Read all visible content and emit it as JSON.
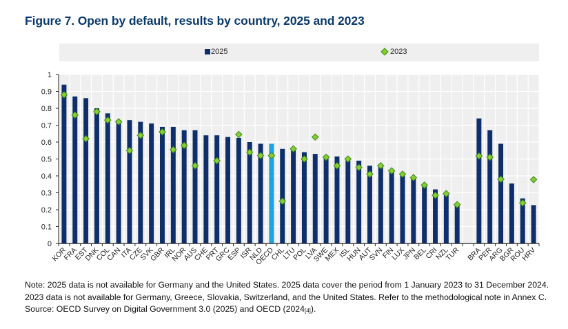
{
  "figure": {
    "title": "Figure 7. Open by default, results by country, 2025 and 2023"
  },
  "legend": {
    "items": [
      {
        "label": "2025",
        "marker": "square",
        "color": "#0e2f6b"
      },
      {
        "label": "2023",
        "marker": "diamond",
        "color": "#88cc33"
      }
    ]
  },
  "colors": {
    "bar": "#0e2f6b",
    "bar_highlight": "#1ba3e3",
    "marker_fill": "#88cc33",
    "marker_stroke": "#3a8a1a",
    "plot_bg": "#efefef",
    "grid": "#ffffff"
  },
  "notes": {
    "line1": "Note: 2025 data is not available for Germany and the United States. 2025 data cover the period from 1 January 2023 to 31 December 2024.",
    "line2": "2023 data is not available for Germany, Greece, Slovakia, Switzerland, and the United States. Refer to the methodological note in Annex C.",
    "line3_prefix": "Source: OECD Survey on Digital Government 3.0 (2025) and OECD (2024",
    "line3_ref": "[4]",
    "line3_suffix": ")."
  },
  "chart_data": {
    "type": "bar",
    "title": "Figure 7. Open by default, results by country, 2025 and 2023",
    "xlabel": "",
    "ylabel": "",
    "ylim": [
      0,
      1
    ],
    "yticks": [
      0,
      0.1,
      0.2,
      0.3,
      0.4,
      0.5,
      0.6,
      0.7,
      0.8,
      0.9,
      1
    ],
    "ytick_labels": [
      "0",
      "0.1",
      "0.2",
      "0.3",
      "0.4",
      "0.5",
      "0.6",
      "0.7",
      "0.8",
      "0.9",
      "1"
    ],
    "grid": true,
    "legend_position": "top",
    "highlight_category": "OECD",
    "categories": [
      "KOR",
      "FRA",
      "EST",
      "DNK",
      "COL",
      "CAN",
      "ITA",
      "CZE",
      "SVK",
      "GBR",
      "IRL",
      "NOR",
      "AUS",
      "CHE",
      "PRT",
      "GRC",
      "ESP",
      "ISR",
      "NLD",
      "OECD",
      "CHL",
      "LTU",
      "POL",
      "LVA",
      "SWE",
      "MEX",
      "ISL",
      "HUN",
      "AUT",
      "SVN",
      "FIN",
      "LUX",
      "JPN",
      "BEL",
      "CRI",
      "NZL",
      "TUR",
      "",
      "BRA",
      "PER",
      "ARG",
      "BGR",
      "ROU",
      "HRV"
    ],
    "series": [
      {
        "name": "2025",
        "type": "bar",
        "values": [
          0.94,
          0.87,
          0.86,
          0.8,
          0.77,
          0.73,
          0.73,
          0.72,
          0.71,
          0.69,
          0.69,
          0.67,
          0.67,
          0.64,
          0.64,
          0.63,
          0.625,
          0.6,
          0.59,
          0.59,
          0.56,
          0.55,
          0.54,
          0.53,
          0.52,
          0.515,
          0.505,
          0.49,
          0.46,
          0.465,
          0.425,
          0.41,
          0.39,
          0.35,
          0.32,
          0.3,
          0.235,
          null,
          0.74,
          0.67,
          0.59,
          0.355,
          0.267,
          0.227
        ]
      },
      {
        "name": "2023",
        "type": "scatter",
        "marker": "diamond",
        "values": [
          0.88,
          0.76,
          0.62,
          0.78,
          0.73,
          0.72,
          0.55,
          0.64,
          null,
          0.66,
          0.555,
          0.58,
          0.46,
          null,
          0.49,
          null,
          0.645,
          0.54,
          0.52,
          0.52,
          0.25,
          0.56,
          0.5,
          0.63,
          0.51,
          0.46,
          0.5,
          0.45,
          0.41,
          0.46,
          0.43,
          0.41,
          0.39,
          0.345,
          0.285,
          0.295,
          0.23,
          null,
          0.518,
          0.51,
          0.38,
          null,
          0.24,
          0.378
        ]
      }
    ]
  }
}
